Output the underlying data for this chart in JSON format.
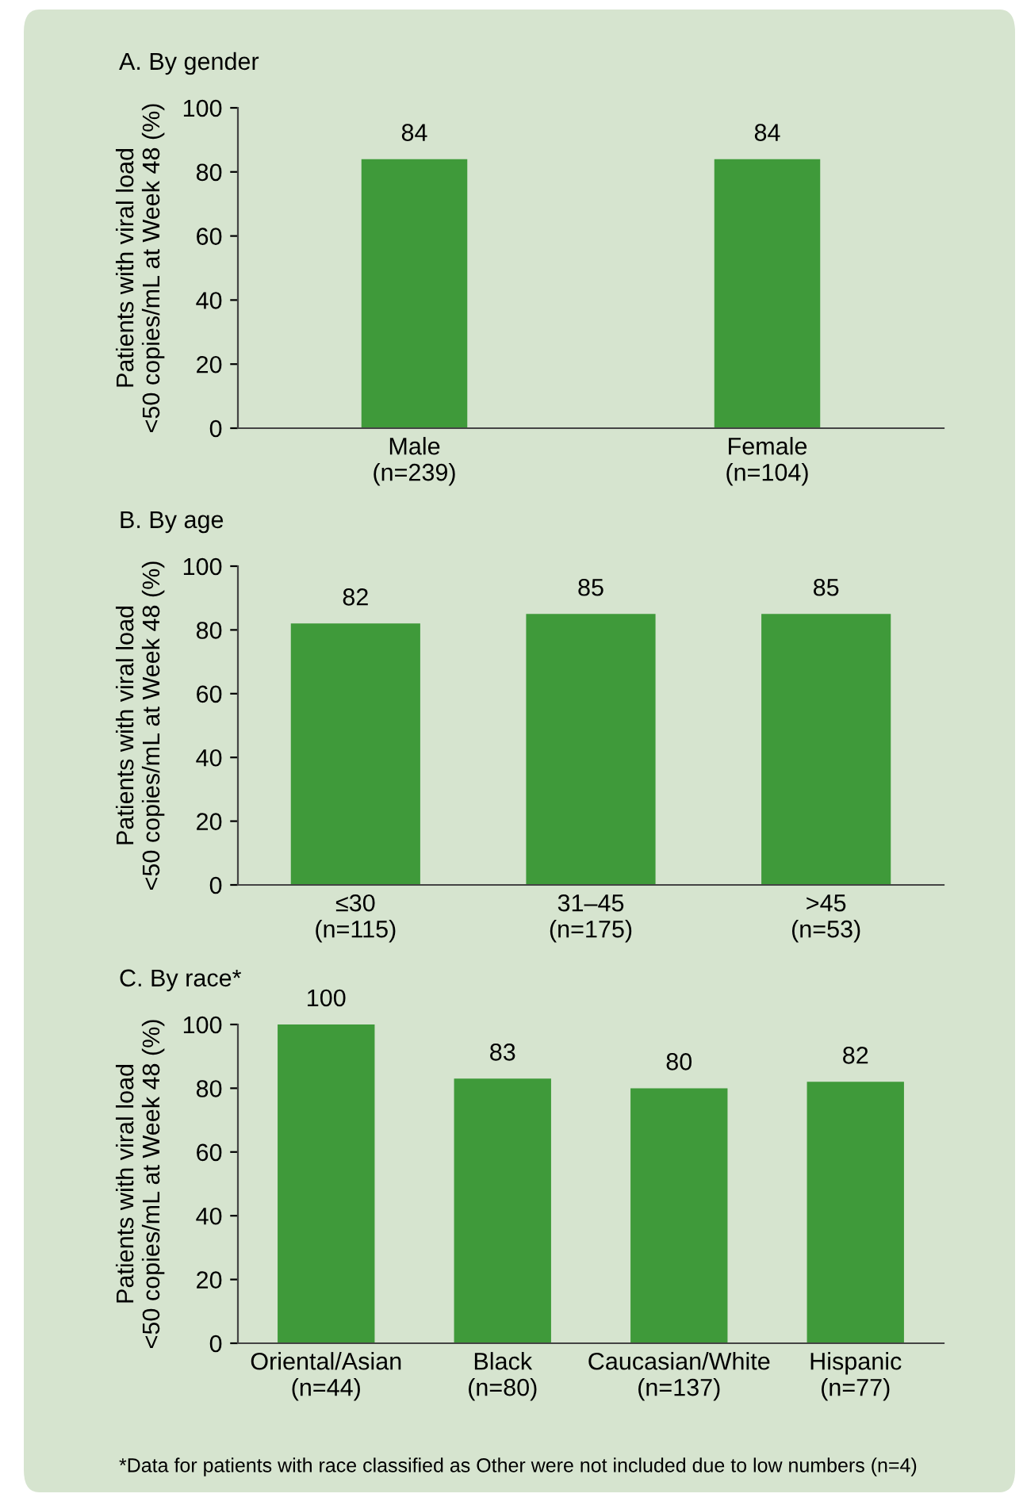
{
  "chart_data": [
    {
      "type": "bar",
      "title": "A. By gender",
      "ylabel": "Patients with viral load\n<50 copies/mL at Week 48 (%)",
      "categories": [
        "Male\n(n=239)",
        "Female\n(n=104)"
      ],
      "values": [
        84,
        84
      ],
      "color": "#3f9a3a",
      "ylim": [
        0,
        100
      ],
      "yticks": [
        0,
        20,
        40,
        60,
        80,
        100
      ],
      "data_labels": true,
      "grid": false,
      "legend": false
    },
    {
      "type": "bar",
      "title": "B. By age",
      "ylabel": "Patients with viral load\n<50 copies/mL at Week 48 (%)",
      "categories": [
        "≤30\n(n=115)",
        "31–45\n(n=175)",
        ">45\n(n=53)"
      ],
      "values": [
        82,
        85,
        85
      ],
      "color": "#3f9a3a",
      "ylim": [
        0,
        100
      ],
      "yticks": [
        0,
        20,
        40,
        60,
        80,
        100
      ],
      "data_labels": true,
      "grid": false,
      "legend": false
    },
    {
      "type": "bar",
      "title": "C. By race*",
      "ylabel": "Patients with viral load\n<50 copies/mL at Week 48 (%)",
      "categories": [
        "Oriental/Asian\n(n=44)",
        "Black\n(n=80)",
        "Caucasian/White\n(n=137)",
        "Hispanic\n(n=77)"
      ],
      "values": [
        100,
        83,
        80,
        82
      ],
      "color": "#3f9a3a",
      "ylim": [
        0,
        100
      ],
      "yticks": [
        0,
        20,
        40,
        60,
        80,
        100
      ],
      "data_labels": true,
      "grid": false,
      "legend": false,
      "annotations": [
        "*Data for patients with race classified as Other were not included due to low numbers (n=4)"
      ]
    }
  ]
}
